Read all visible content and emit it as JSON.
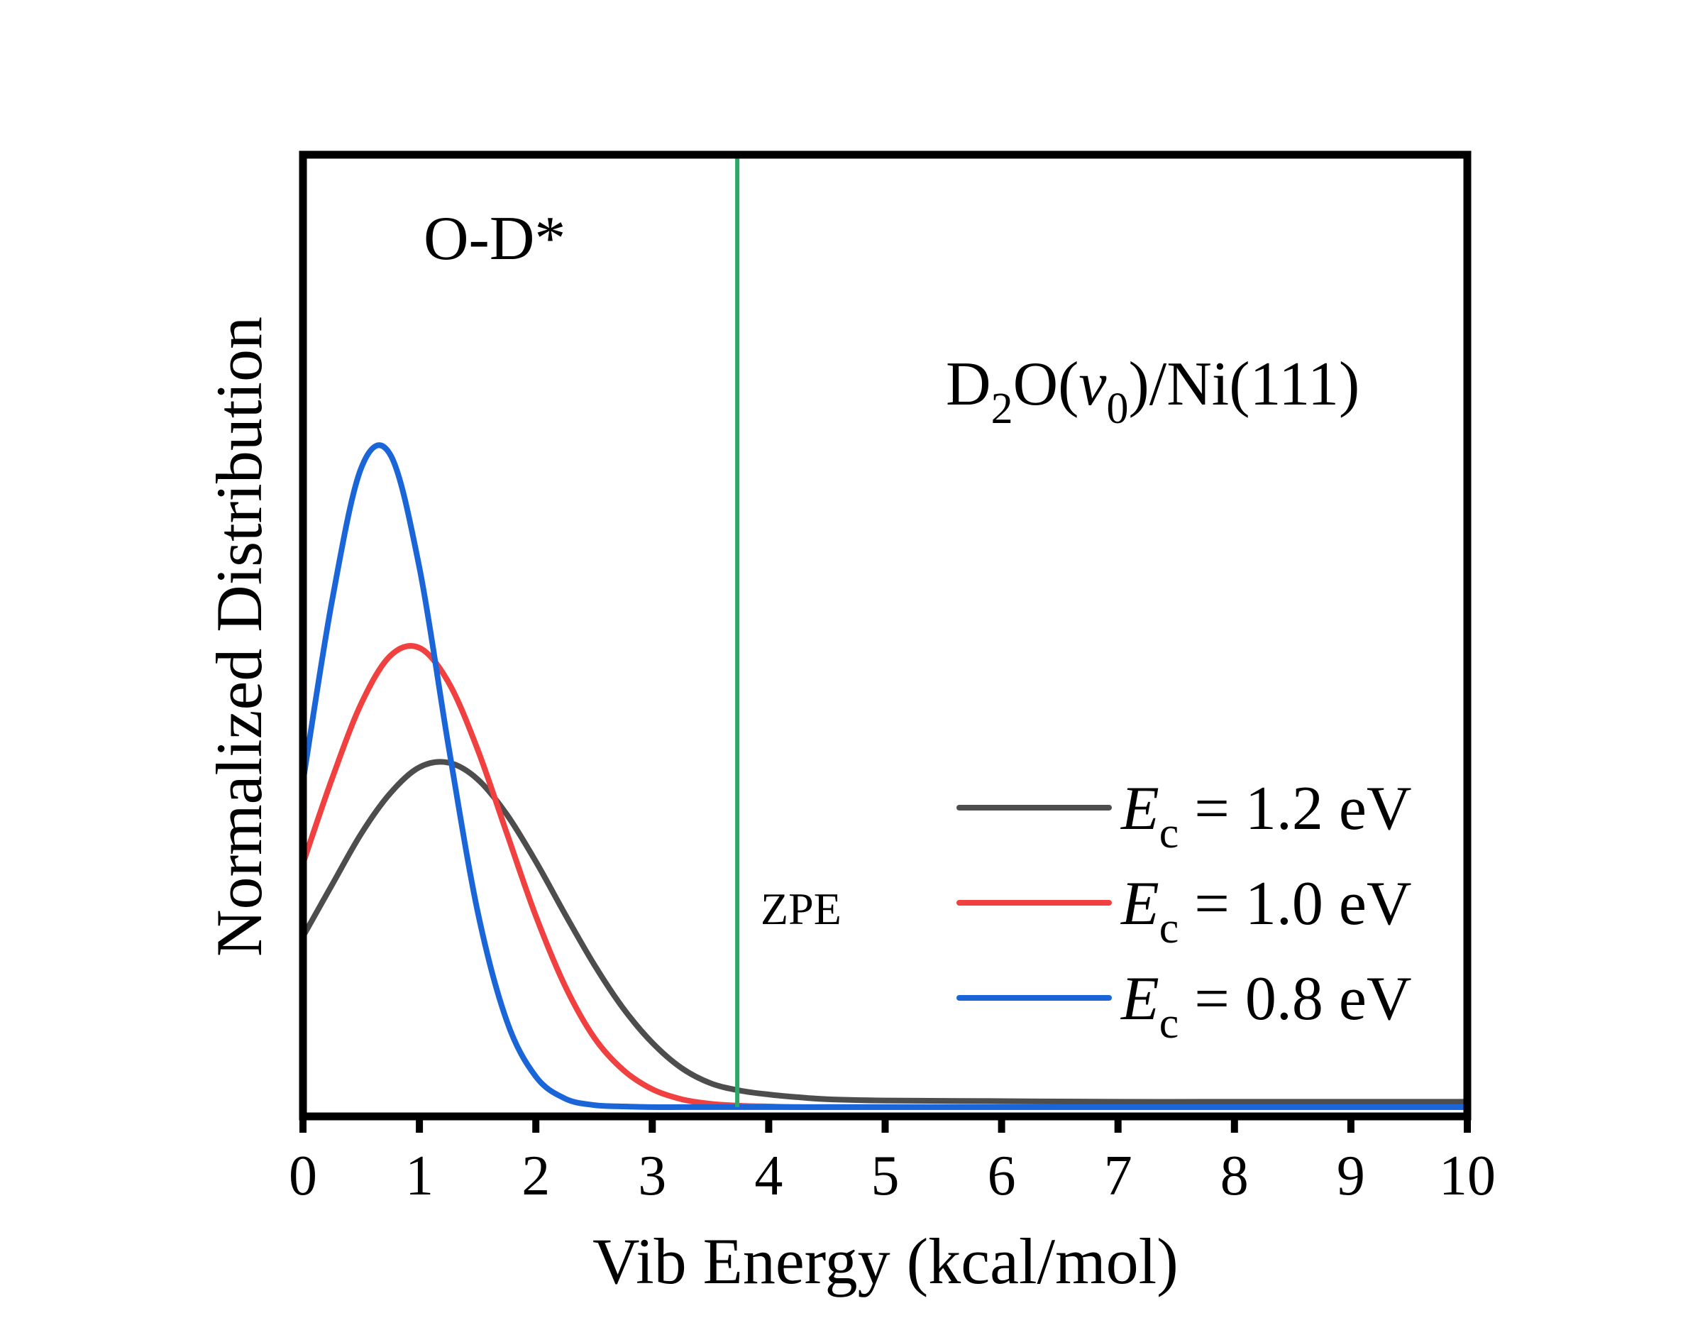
{
  "chart_data": {
    "type": "line",
    "title": "",
    "xlabel": "Vib Energy (kcal/mol)",
    "ylabel": "Normalized Distribution",
    "xlim": [
      0,
      10
    ],
    "ylim": [
      -0.014,
      1.435
    ],
    "xticks": [
      "0",
      "1",
      "2",
      "3",
      "4",
      "5",
      "6",
      "7",
      "8",
      "9",
      "10"
    ],
    "yticks": [],
    "grid": false,
    "legend_position": "bottom-right",
    "x": [
      0,
      0.25,
      0.5,
      0.75,
      1.0,
      1.25,
      1.5,
      1.75,
      2.0,
      2.25,
      2.5,
      2.75,
      3.0,
      3.25,
      3.5,
      3.75,
      4.0,
      4.25,
      4.5,
      5,
      6,
      7,
      8,
      9,
      10
    ],
    "series": [
      {
        "name": "Ec = 1.2 eV",
        "legend_symbol": "E",
        "legend_subscript": "c",
        "legend_value": " = 1.2 eV",
        "color": "#4d4d4d",
        "values": [
          0.257,
          0.335,
          0.412,
          0.473,
          0.512,
          0.519,
          0.494,
          0.441,
          0.37,
          0.291,
          0.215,
          0.149,
          0.097,
          0.059,
          0.036,
          0.025,
          0.019,
          0.015,
          0.012,
          0.01,
          0.009,
          0.008,
          0.008,
          0.008,
          0.008
        ]
      },
      {
        "name": "Ec = 1.0 eV",
        "legend_symbol": "E",
        "legend_subscript": "c",
        "legend_value": " = 1.0 eV",
        "color": "#f04040",
        "values": [
          0.367,
          0.495,
          0.608,
          0.68,
          0.692,
          0.64,
          0.539,
          0.413,
          0.288,
          0.183,
          0.105,
          0.056,
          0.027,
          0.012,
          0.005,
          0.002,
          0.001,
          0,
          0,
          0,
          0,
          0,
          0,
          0,
          0
        ]
      },
      {
        "name": "Ec = 0.8 eV",
        "legend_symbol": "E",
        "legend_subscript": "c",
        "legend_value": " = 0.8 eV",
        "color": "#1a66d9",
        "values": [
          0.49,
          0.763,
          0.963,
          0.983,
          0.813,
          0.544,
          0.295,
          0.13,
          0.046,
          0.013,
          0.003,
          0.001,
          0,
          0,
          0,
          0,
          0,
          0,
          0,
          0,
          0,
          0,
          0,
          0,
          0
        ]
      }
    ],
    "vline": {
      "x": 3.73,
      "label": "ZPE",
      "color": "#2ea86a"
    },
    "annotations": {
      "species": "O-D*",
      "system_main": "D",
      "system_sub1": "2",
      "system_mid": "O(",
      "system_italic": "v",
      "system_sub2": "0",
      "system_end": ")/Ni(111)"
    }
  }
}
